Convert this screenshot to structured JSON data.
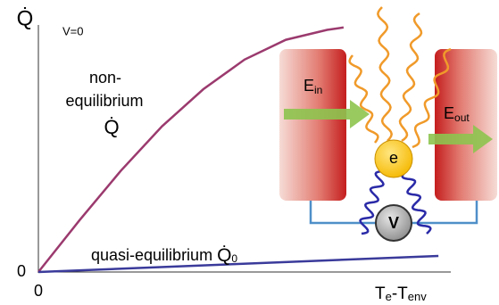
{
  "chart_data": {
    "type": "line",
    "y_label": "Q̇",
    "annotation": "V=0",
    "x_label_parts": [
      "T",
      "e",
      "-T",
      "env"
    ],
    "xlim": [
      0,
      10
    ],
    "ylim": [
      0,
      10
    ],
    "xticks": [
      0
    ],
    "yticks": [
      0
    ],
    "series": [
      {
        "color": "#9b3a6e",
        "label_lines": [
          "non-",
          "equilibrium",
          "Q̇"
        ],
        "x": [
          0,
          1,
          2,
          3,
          4,
          5,
          6,
          7,
          7.4
        ],
        "values": [
          0,
          2.1,
          4.1,
          5.9,
          7.4,
          8.6,
          9.4,
          9.8,
          9.9
        ]
      },
      {
        "color": "#3a3a9b",
        "label": "quasi-equilibrium",
        "label_symbol": "Q̇",
        "label_subscript": "0",
        "x": [
          0,
          9.7
        ],
        "values": [
          0,
          0.65
        ]
      }
    ]
  },
  "inset": {
    "electron": "e",
    "voltmeter": "V",
    "left_energy": [
      "E",
      "in"
    ],
    "right_energy": [
      "E",
      "out"
    ]
  }
}
